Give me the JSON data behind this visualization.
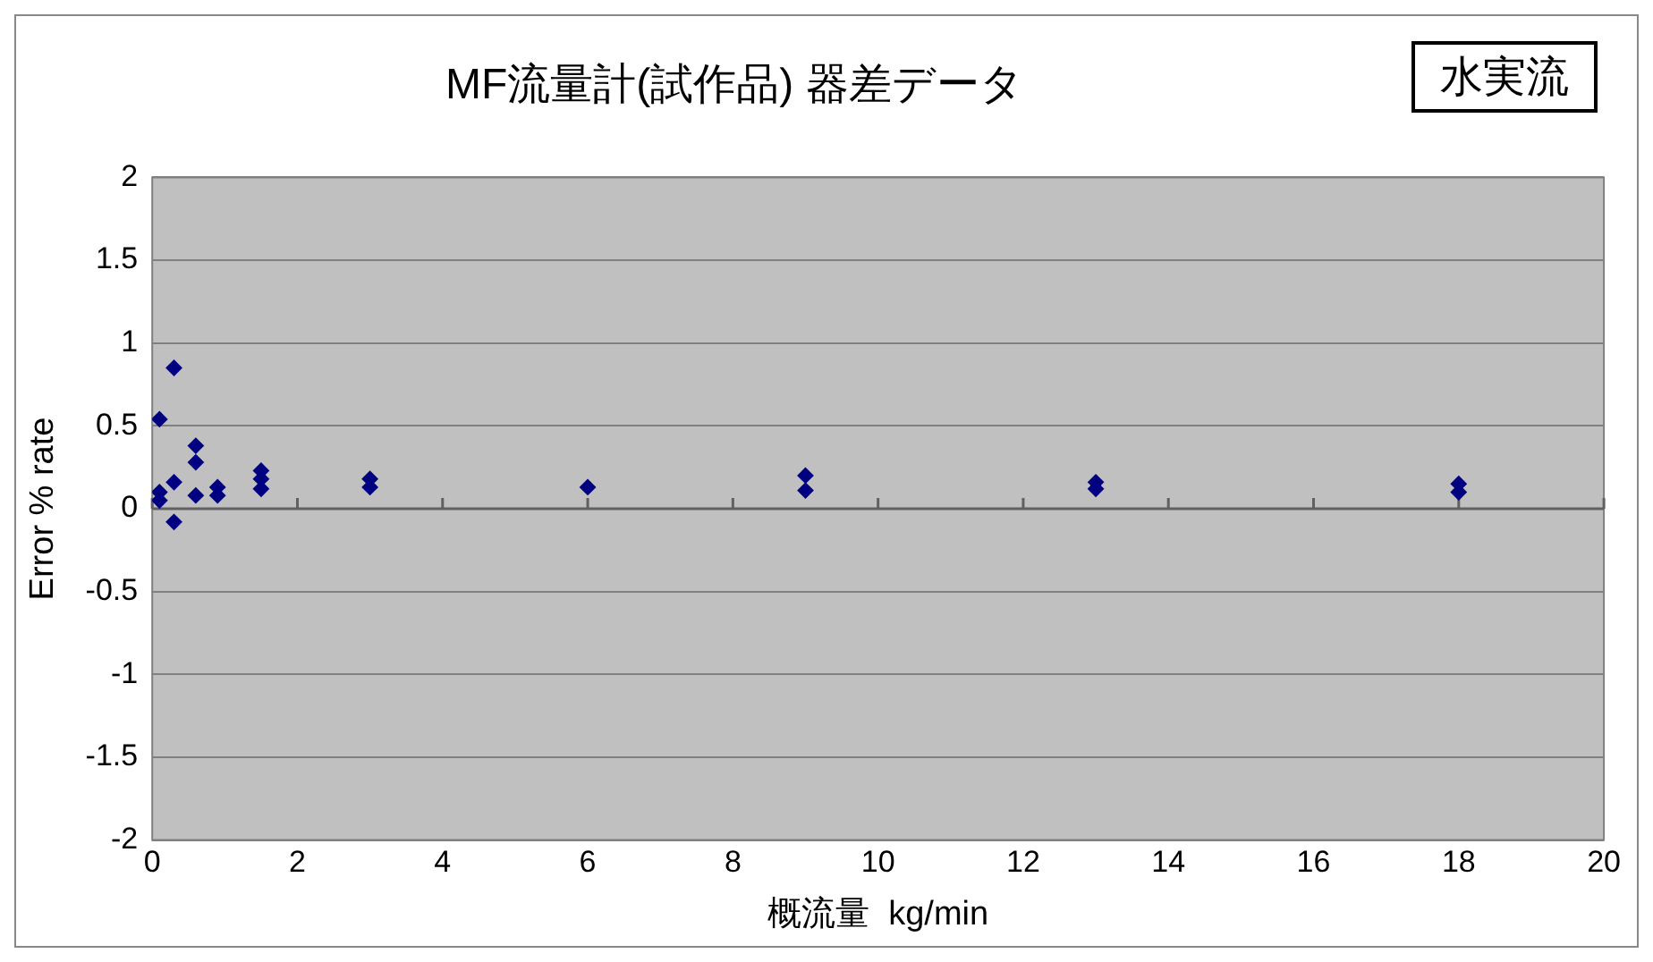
{
  "chart_data": {
    "type": "scatter",
    "title": "MF流量計(試作品)  器差データ",
    "xlabel": "概流量  kg/min",
    "ylabel": "Error % rate",
    "annotations": [
      "水実流"
    ],
    "series": [
      {
        "color": "#000080",
        "x": [
          0.1,
          0.1,
          0.1,
          0.3,
          0.3,
          0.3,
          0.6,
          0.6,
          0.6,
          0.9,
          0.9,
          1.5,
          1.5,
          1.5,
          3,
          3,
          6,
          9,
          9,
          13,
          13,
          18,
          18
        ],
        "values": [
          0.54,
          0.1,
          0.05,
          0.85,
          0.16,
          -0.08,
          0.38,
          0.28,
          0.08,
          0.13,
          0.08,
          0.23,
          0.18,
          0.12,
          0.18,
          0.13,
          0.13,
          0.2,
          0.11,
          0.16,
          0.12,
          0.15,
          0.1
        ]
      }
    ],
    "xlim": [
      0,
      20
    ],
    "xticks": [
      0,
      2,
      4,
      6,
      8,
      10,
      12,
      14,
      16,
      18,
      20
    ],
    "ylim": [
      -2,
      2
    ],
    "yticks": [
      -2,
      -1.5,
      -1,
      -0.5,
      0,
      0.5,
      1,
      1.5,
      2
    ],
    "grid": "y",
    "legend": false,
    "marker": "diamond"
  }
}
